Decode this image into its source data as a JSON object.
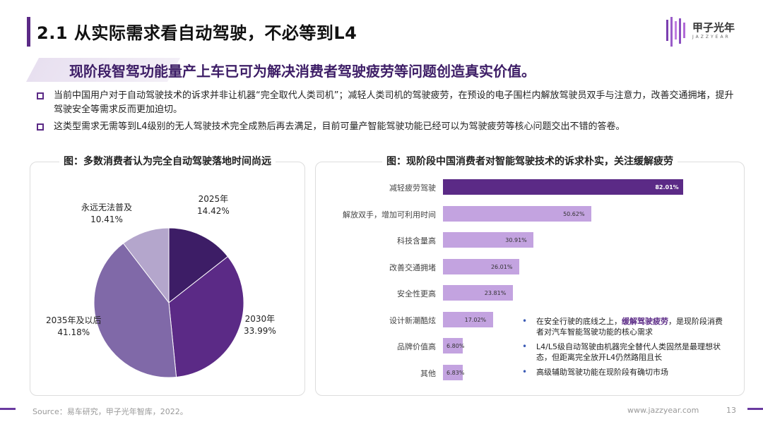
{
  "header": {
    "title": "2.1 从实际需求看自动驾驶，不必等到L4",
    "logo_text": "甲子光年",
    "logo_sub": "JAZZYEAR"
  },
  "subtitle": "现阶段智驾功能量产上车已可为解决消费者驾驶疲劳等问题创造真实价值。",
  "bullets": [
    "当前中国用户对于自动驾驶技术的诉求并非让机器“完全取代人类司机”；减轻人类司机的驾驶疲劳，在预设的电子围栏内解放驾驶员双手与注意力，改善交通拥堵，提升驾驶安全等需求反而更加迫切。",
    "这类型需求无需等到L4级别的无人驾驶技术完全成熟后再去满足，目前可量产智能驾驶功能已经可以为驾驶疲劳等核心问题交出不错的答卷。"
  ],
  "left_panel": {
    "title": "图：多数消费者认为完全自动驾驶落地时间尚远"
  },
  "right_panel": {
    "title": "图：现阶段中国消费者对智能驾驶技术的诉求朴实，关注缓解疲劳"
  },
  "chart_data": [
    {
      "type": "pie",
      "title": "图：多数消费者认为完全自动驾驶落地时间尚远",
      "slices": [
        {
          "label": "2025年",
          "value": 14.42,
          "display": "14.42%",
          "color": "#3d1d66"
        },
        {
          "label": "2030年",
          "value": 33.99,
          "display": "33.99%",
          "color": "#5b2a86"
        },
        {
          "label": "2035年及以后",
          "value": 41.18,
          "display": "41.18%",
          "color": "#8069a8"
        },
        {
          "label": "永远无法普及",
          "value": 10.41,
          "display": "10.41%",
          "color": "#b4a6cc"
        }
      ]
    },
    {
      "type": "bar",
      "orientation": "horizontal",
      "title": "图：现阶段中国消费者对智能驾驶技术的诉求朴实，关注缓解疲劳",
      "categories": [
        "减轻疲劳驾驶",
        "解放双手，增加可利用时间",
        "科技含量高",
        "改善交通拥堵",
        "安全性更高",
        "设计新潮酷炫",
        "品牌价值高",
        "其他"
      ],
      "values": [
        82.01,
        50.62,
        30.91,
        26.01,
        23.81,
        17.02,
        6.8,
        6.83
      ],
      "value_labels": [
        "82.01%",
        "50.62%",
        "30.91%",
        "26.01%",
        "23.81%",
        "17.02%",
        "6.80%",
        "6.83%"
      ],
      "xlim": [
        0,
        100
      ],
      "colors": {
        "highlight": "#5b2a86",
        "normal": "#c3a3e0"
      }
    }
  ],
  "notes": {
    "n1_pre": "在安全行驶的底线之上，",
    "n1_hl": "缓解驾驶疲劳",
    "n1_post": "，是现阶段消费者对汽车智能驾驶功能的核心需求",
    "n2": "L4/L5级自动驾驶由机器完全替代人类固然是最理想状态，但距离完全放开L4仍然路阻且长",
    "n3": "高级辅助驾驶功能在现阶段有确切市场"
  },
  "footer": {
    "source": "Source：易车研究，甲子光年智库，2022。",
    "website": "www.jazzyear.com",
    "page": "13"
  }
}
